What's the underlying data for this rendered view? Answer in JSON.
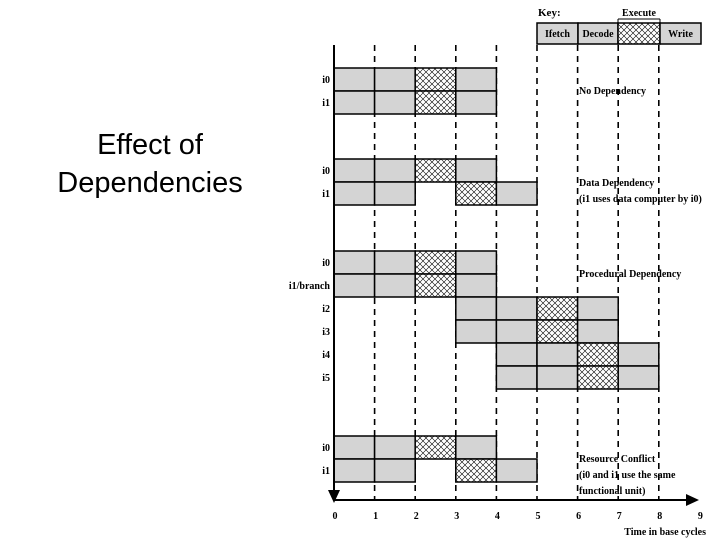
{
  "slide": {
    "title_line1": "Effect of",
    "title_line2": "Dependencies"
  },
  "key": {
    "title": "Key:",
    "execute": "Execute",
    "stages": [
      "Ifetch",
      "Decode",
      "",
      "Write"
    ]
  },
  "timeline": {
    "tick_labels": [
      "0",
      "1",
      "2",
      "3",
      "4",
      "5",
      "6",
      "7",
      "8",
      "9"
    ],
    "axis_label": "Time in base cycles"
  },
  "groups": [
    {
      "id": "no-dependency",
      "caption": [
        "No Dependency"
      ],
      "rows": [
        {
          "label": "i0",
          "start": 0
        },
        {
          "label": "i1",
          "start": 0
        }
      ]
    },
    {
      "id": "data-dependency",
      "caption": [
        "Data Dependency",
        "(i1 uses data computer by i0)"
      ],
      "rows": [
        {
          "label": "i0",
          "start": 0
        },
        {
          "label": "i1",
          "start": 0,
          "stall": 1
        }
      ]
    },
    {
      "id": "procedural-dependency",
      "caption": [
        "Procedural Dependency"
      ],
      "rows": [
        {
          "label": "i0",
          "start": 0
        },
        {
          "label": "i1/branch",
          "start": 0
        },
        {
          "label": "i2",
          "start": 3
        },
        {
          "label": "i3",
          "start": 3
        },
        {
          "label": "i4",
          "start": 4
        },
        {
          "label": "i5",
          "start": 4
        }
      ]
    },
    {
      "id": "resource-conflict",
      "caption": [
        "Resource Conflict",
        "(i0 and i1 use the same",
        "functional unit)"
      ],
      "rows": [
        {
          "label": "i0",
          "start": 0
        },
        {
          "label": "i1",
          "start": 0,
          "stall": 1
        }
      ]
    }
  ],
  "colors": {
    "stage_fill": "#d4d4d4",
    "line": "#000000",
    "background": "#ffffff"
  }
}
